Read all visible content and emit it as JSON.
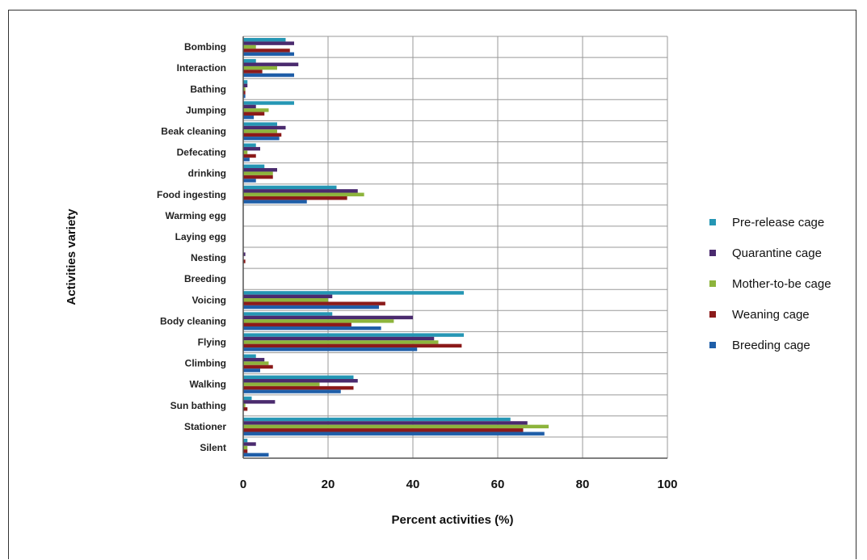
{
  "chart_data": {
    "type": "bar",
    "orientation": "horizontal",
    "title": "",
    "xlabel": "Percent activities (%)",
    "ylabel": "Activities variety",
    "xlim": [
      0,
      100
    ],
    "xticks": [
      "0",
      "20",
      "40",
      "60",
      "80",
      "100"
    ],
    "grid": true,
    "legend_position": "right",
    "categories": [
      "Bombing",
      "Interaction",
      "Bathing",
      "Jumping",
      "Beak cleaning",
      "Defecating",
      "drinking",
      "Food ingesting",
      "Warming egg",
      "Laying egg",
      "Nesting",
      "Breeding",
      "Voicing",
      "Body cleaning",
      "Flying",
      "Climbing",
      "Walking",
      "Sun bathing",
      "Stationer",
      "Silent"
    ],
    "series": [
      {
        "name": "Pre-release cage",
        "color": "#2596b4",
        "values": [
          10,
          3,
          1,
          12,
          8,
          3,
          5,
          22,
          0,
          0,
          0,
          0,
          52,
          21,
          52,
          3,
          26,
          2,
          63,
          1
        ]
      },
      {
        "name": "Quarantine cage",
        "color": "#4a2a6e",
        "values": [
          12,
          13,
          1,
          3,
          10,
          4,
          8,
          27,
          0,
          0,
          0.5,
          0,
          21,
          40,
          45,
          5,
          27,
          7.5,
          67,
          3
        ]
      },
      {
        "name": "Mother-to-be cage",
        "color": "#8db43c",
        "values": [
          3,
          8,
          0.5,
          6,
          8,
          1,
          7,
          28.5,
          0,
          0,
          0,
          0,
          20,
          35.5,
          46,
          6,
          18,
          0.5,
          72,
          1
        ]
      },
      {
        "name": "Weaning cage",
        "color": "#8b1a1a",
        "values": [
          11,
          4.5,
          0.5,
          5,
          9,
          3,
          7,
          24.5,
          0,
          0,
          0.5,
          0,
          33.5,
          25.5,
          51.5,
          7,
          26,
          1,
          66,
          1
        ]
      },
      {
        "name": "Breeding cage",
        "color": "#1f5ea8",
        "values": [
          12,
          12,
          0.5,
          2.5,
          8.5,
          1.5,
          3,
          15,
          0,
          0,
          0,
          0,
          32,
          32.5,
          41,
          4,
          23,
          0,
          71,
          6
        ]
      }
    ]
  }
}
